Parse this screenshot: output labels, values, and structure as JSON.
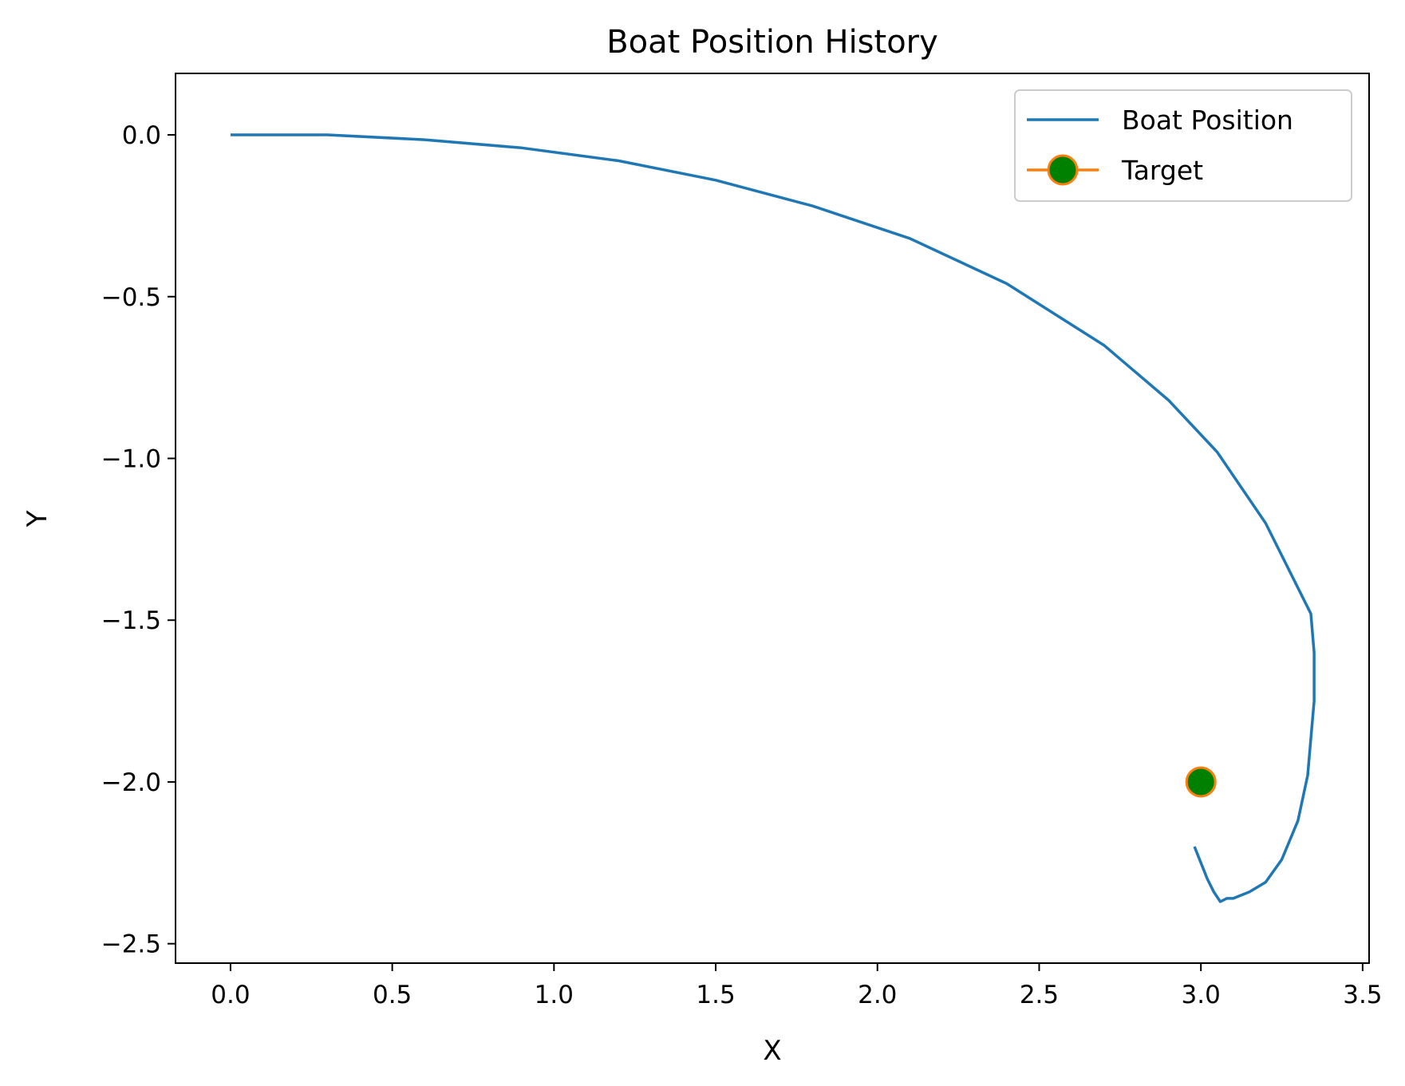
{
  "chart_data": {
    "type": "line",
    "title": "Boat Position History",
    "xlabel": "X",
    "ylabel": "Y",
    "xlim": [
      -0.17,
      3.52
    ],
    "ylim": [
      -2.56,
      0.19
    ],
    "xticks": [
      0.0,
      0.5,
      1.0,
      1.5,
      2.0,
      2.5,
      3.0,
      3.5
    ],
    "xtick_labels": [
      "0.0",
      "0.5",
      "1.0",
      "1.5",
      "2.0",
      "2.5",
      "3.0",
      "3.5"
    ],
    "yticks": [
      0.0,
      -0.5,
      -1.0,
      -1.5,
      -2.0,
      -2.5
    ],
    "ytick_labels": [
      "0.0",
      "−0.5",
      "−1.0",
      "−1.5",
      "−2.0",
      "−2.5"
    ],
    "grid": false,
    "legend_position": "top-right",
    "series": [
      {
        "name": "Boat Position",
        "color": "#1f77b4",
        "x": [
          0.0,
          0.3,
          0.6,
          0.9,
          1.2,
          1.5,
          1.8,
          2.1,
          2.4,
          2.7,
          2.9,
          3.05,
          3.2,
          3.3,
          3.34,
          3.35,
          3.35,
          3.33,
          3.3,
          3.25,
          3.2,
          3.15,
          3.1,
          3.08,
          3.06,
          3.04,
          3.02,
          3.0,
          2.98
        ],
        "y": [
          0.0,
          0.0,
          -0.015,
          -0.04,
          -0.08,
          -0.14,
          -0.22,
          -0.32,
          -0.46,
          -0.65,
          -0.82,
          -0.98,
          -1.2,
          -1.4,
          -1.48,
          -1.6,
          -1.75,
          -1.98,
          -2.12,
          -2.24,
          -2.31,
          -2.34,
          -2.36,
          -2.36,
          -2.37,
          -2.34,
          -2.3,
          -2.25,
          -2.2
        ]
      },
      {
        "name": "Target",
        "line_color": "#ff7f0e",
        "marker_fill": "#008000",
        "marker_edge": "#ff7f0e",
        "x": [
          3.0
        ],
        "y": [
          -2.0
        ]
      }
    ]
  }
}
